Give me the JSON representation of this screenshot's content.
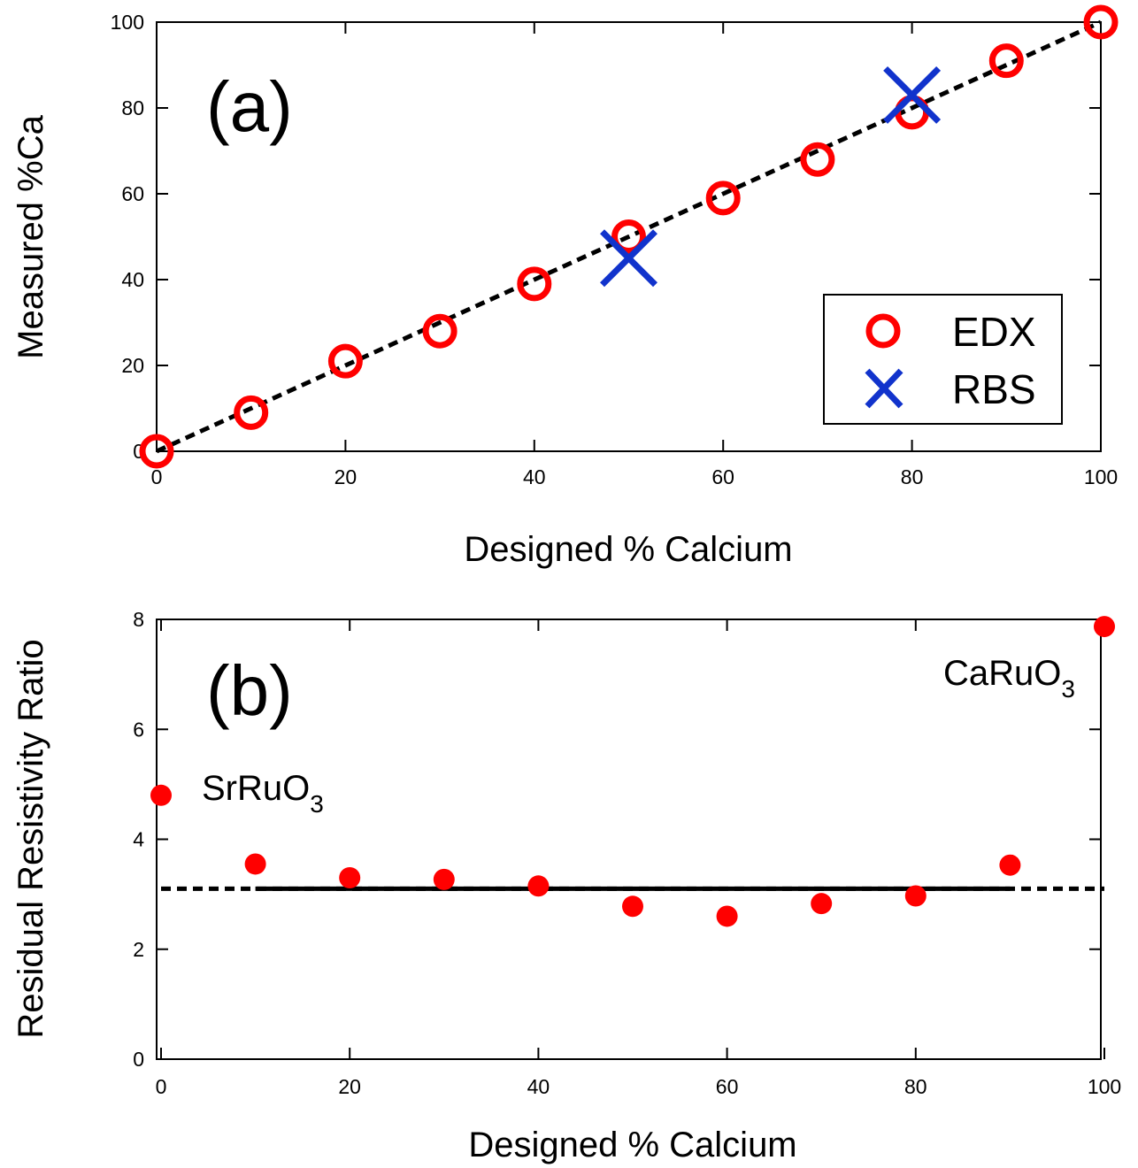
{
  "chart_data": [
    {
      "type": "scatter",
      "panel_label": "(a)",
      "xlabel": "Designed % Calcium",
      "ylabel": "Measured %Ca",
      "xlim": [
        0,
        100
      ],
      "ylim": [
        0,
        100
      ],
      "xticks": [
        0,
        20,
        40,
        60,
        80,
        100
      ],
      "yticks": [
        0,
        20,
        40,
        60,
        80,
        100
      ],
      "grid": false,
      "legend_position": "bottom-right",
      "series": [
        {
          "name": "EDX",
          "marker": "open-circle",
          "color": "#ff0000",
          "x": [
            0,
            10,
            20,
            30,
            40,
            50,
            60,
            70,
            80,
            90,
            100
          ],
          "y": [
            0,
            9,
            21,
            28,
            39,
            50,
            59,
            68,
            79,
            91,
            100
          ]
        },
        {
          "name": "RBS",
          "marker": "x",
          "color": "#1133cc",
          "x": [
            50,
            80
          ],
          "y": [
            45,
            83
          ]
        }
      ],
      "reference_line": {
        "style": "dashed",
        "color": "#000000",
        "x": [
          0,
          100
        ],
        "y": [
          0,
          100
        ]
      }
    },
    {
      "type": "scatter",
      "panel_label": "(b)",
      "xlabel": "Designed % Calcium",
      "ylabel": "Residual Resistivity Ratio",
      "xlim": [
        0,
        100
      ],
      "ylim": [
        0,
        8
      ],
      "xticks": [
        0,
        20,
        40,
        60,
        80,
        100
      ],
      "yticks": [
        0,
        2,
        4,
        6,
        8
      ],
      "grid": false,
      "series": [
        {
          "marker": "filled-circle",
          "color": "#ff0000",
          "x": [
            0,
            10,
            20,
            30,
            40,
            50,
            60,
            70,
            80,
            90,
            100
          ],
          "y": [
            4.8,
            3.55,
            3.3,
            3.27,
            3.15,
            2.78,
            2.6,
            2.83,
            2.97,
            3.53,
            7.87
          ]
        }
      ],
      "reference_lines": [
        {
          "style": "dashed",
          "color": "#000000",
          "x": [
            0,
            100
          ],
          "y": [
            3.1,
            3.1
          ]
        },
        {
          "style": "solid",
          "color": "#000000",
          "x": [
            10,
            90
          ],
          "y": [
            3.1,
            3.1
          ]
        }
      ],
      "annotations": [
        {
          "text": "SrRuO",
          "subscript": "3",
          "anchor_x": 4,
          "anchor_y": 5.0
        },
        {
          "text": "CaRuO",
          "subscript": "3",
          "anchor_x": 99,
          "anchor_y": 7.2
        }
      ]
    }
  ]
}
